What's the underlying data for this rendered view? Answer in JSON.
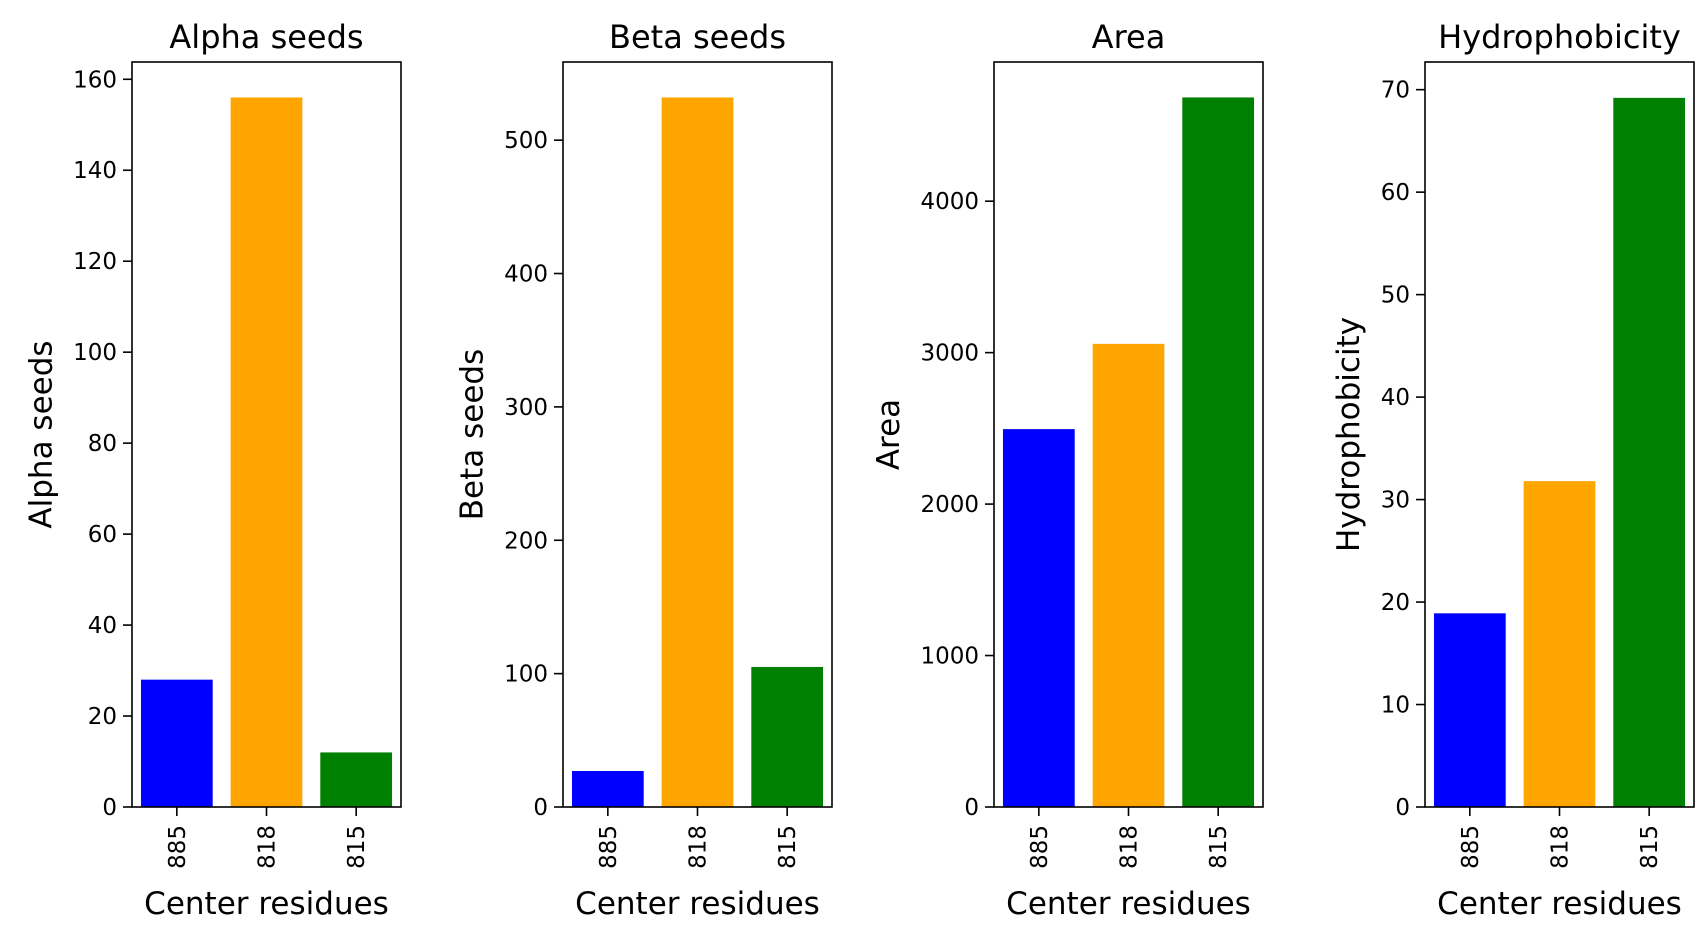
{
  "chart_data": [
    {
      "type": "bar",
      "title": "Alpha seeds",
      "xlabel": "Center residues",
      "ylabel": "Alpha seeds",
      "categories": [
        "885",
        "818",
        "815"
      ],
      "values": [
        28,
        156,
        12
      ],
      "colors": [
        "#0000ff",
        "#ffa500",
        "#008000"
      ],
      "ylim": [
        0,
        163.8
      ],
      "yticks": [
        0,
        20,
        40,
        60,
        80,
        100,
        120,
        140,
        160
      ],
      "grid": false
    },
    {
      "type": "bar",
      "title": "Beta seeds",
      "xlabel": "Center residues",
      "ylabel": "Beta seeds",
      "categories": [
        "885",
        "818",
        "815"
      ],
      "values": [
        27,
        532,
        105
      ],
      "colors": [
        "#0000ff",
        "#ffa500",
        "#008000"
      ],
      "ylim": [
        0,
        558.6
      ],
      "yticks": [
        0,
        100,
        200,
        300,
        400,
        500
      ],
      "grid": false
    },
    {
      "type": "bar",
      "title": "Area",
      "xlabel": "Center residues",
      "ylabel": "Area",
      "categories": [
        "885",
        "818",
        "815"
      ],
      "values": [
        2495,
        3058,
        4685
      ],
      "colors": [
        "#0000ff",
        "#ffa500",
        "#008000"
      ],
      "ylim": [
        0,
        4919
      ],
      "yticks": [
        0,
        1000,
        2000,
        3000,
        4000
      ],
      "grid": false
    },
    {
      "type": "bar",
      "title": "Hydrophobicity",
      "xlabel": "Center residues",
      "ylabel": "Hydrophobicity",
      "categories": [
        "885",
        "818",
        "815"
      ],
      "values": [
        18.9,
        31.8,
        69.2
      ],
      "colors": [
        "#0000ff",
        "#ffa500",
        "#008000"
      ],
      "ylim": [
        0,
        72.7
      ],
      "yticks": [
        0,
        10,
        20,
        30,
        40,
        50,
        60,
        70
      ],
      "grid": false
    }
  ]
}
